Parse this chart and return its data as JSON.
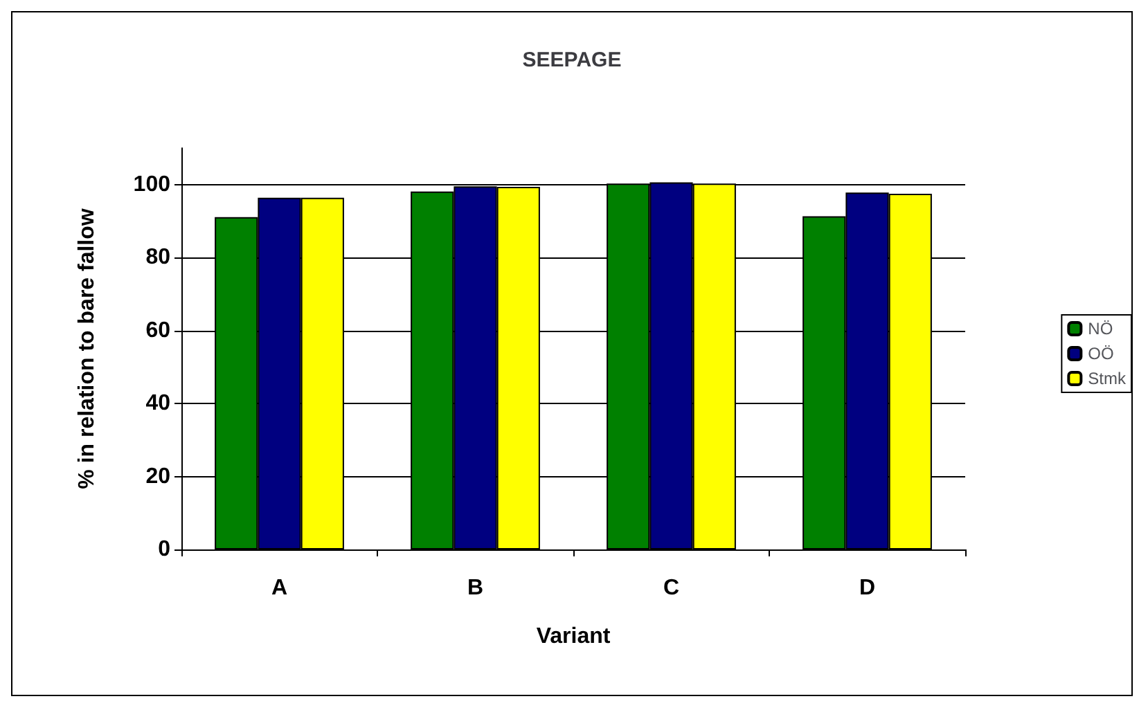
{
  "chart_data": {
    "type": "bar",
    "title": "SEEPAGE",
    "xlabel": "Variant",
    "ylabel": "% in relation to bare fallow",
    "categories": [
      "A",
      "B",
      "C",
      "D"
    ],
    "series": [
      {
        "name": "NÖ",
        "color": "#008000",
        "values": [
          91.1,
          98.1,
          100.3,
          91.3
        ]
      },
      {
        "name": "OÖ",
        "color": "#000080",
        "values": [
          96.4,
          99.5,
          100.6,
          97.8
        ]
      },
      {
        "name": "Stmk",
        "color": "#ffff00",
        "values": [
          96.4,
          99.4,
          100.3,
          97.5
        ]
      }
    ],
    "ylim": [
      0,
      110
    ],
    "yticks": [
      0,
      20,
      40,
      60,
      80,
      100
    ],
    "grid": "y",
    "legend": "right"
  }
}
